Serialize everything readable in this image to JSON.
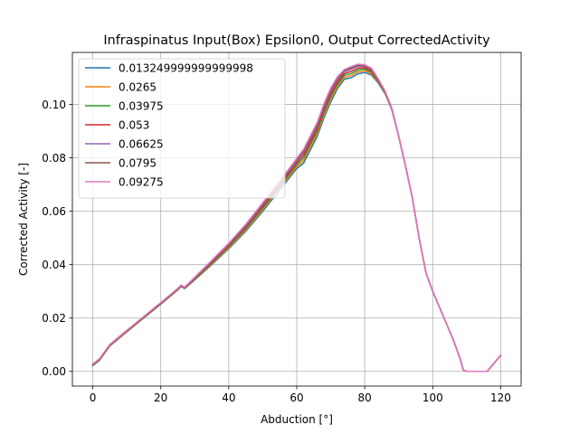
{
  "chart_data": {
    "type": "line",
    "title": "Infraspinatus Input(Box) Epsilon0, Output CorrectedActivity",
    "xlabel": "Abduction [°]",
    "ylabel": "Corrected Activity [-]",
    "xlim": [
      -6,
      126
    ],
    "ylim": [
      -0.0055,
      0.1195
    ],
    "xticks": [
      0,
      20,
      40,
      60,
      80,
      100,
      120
    ],
    "yticks": [
      0.0,
      0.02,
      0.04,
      0.06,
      0.08,
      0.1
    ],
    "ytick_labels": [
      "0.00",
      "0.02",
      "0.04",
      "0.06",
      "0.08",
      "0.10"
    ],
    "grid": true,
    "legend_position": "top-left",
    "x": [
      0,
      2,
      5,
      10,
      15,
      20,
      25,
      26,
      27,
      30,
      35,
      40,
      45,
      50,
      55,
      60,
      62,
      64,
      66,
      68,
      70,
      72,
      74,
      76,
      78,
      80,
      82,
      84,
      86,
      88,
      90,
      92,
      94,
      96,
      98,
      100,
      102,
      104,
      106,
      108,
      109,
      110,
      112,
      114,
      116,
      117,
      118,
      120
    ],
    "series": [
      {
        "name": "0.013249999999999998",
        "color": "#1f77b4",
        "values": [
          0.0022,
          0.0042,
          0.0095,
          0.0148,
          0.02,
          0.0252,
          0.0305,
          0.0318,
          0.031,
          0.0343,
          0.04,
          0.046,
          0.0525,
          0.06,
          0.068,
          0.076,
          0.078,
          0.083,
          0.088,
          0.095,
          0.101,
          0.106,
          0.1095,
          0.11,
          0.1115,
          0.112,
          0.111,
          0.108,
          0.104,
          0.098,
          0.088,
          0.077,
          0.065,
          0.05,
          0.037,
          0.03,
          0.024,
          0.018,
          0.012,
          0.005,
          0.0005,
          0.0,
          0.0,
          0.0,
          0.0,
          0.0015,
          0.003,
          0.006
        ]
      },
      {
        "name": "0.0265",
        "color": "#ff7f0e",
        "values": [
          0.0023,
          0.0043,
          0.0096,
          0.0149,
          0.0201,
          0.0253,
          0.0306,
          0.0319,
          0.0311,
          0.0345,
          0.0403,
          0.0464,
          0.053,
          0.0606,
          0.0686,
          0.0767,
          0.079,
          0.084,
          0.089,
          0.096,
          0.102,
          0.1068,
          0.1102,
          0.1108,
          0.1122,
          0.1127,
          0.1115,
          0.1083,
          0.1042,
          0.0981,
          0.088,
          0.077,
          0.065,
          0.05,
          0.037,
          0.03,
          0.024,
          0.018,
          0.012,
          0.005,
          0.0005,
          0.0,
          0.0,
          0.0,
          0.0,
          0.0015,
          0.003,
          0.006
        ]
      },
      {
        "name": "0.03975",
        "color": "#2ca02c",
        "values": [
          0.0024,
          0.0044,
          0.0097,
          0.015,
          0.0202,
          0.0254,
          0.0307,
          0.032,
          0.0312,
          0.0347,
          0.0406,
          0.0468,
          0.0535,
          0.0612,
          0.0692,
          0.0774,
          0.08,
          0.085,
          0.09,
          0.097,
          0.103,
          0.1076,
          0.1109,
          0.1116,
          0.1129,
          0.1133,
          0.112,
          0.1086,
          0.1044,
          0.0982,
          0.088,
          0.077,
          0.065,
          0.05,
          0.037,
          0.03,
          0.024,
          0.018,
          0.012,
          0.005,
          0.0005,
          0.0,
          0.0,
          0.0,
          0.0,
          0.0015,
          0.003,
          0.006
        ]
      },
      {
        "name": "0.053",
        "color": "#d62728",
        "values": [
          0.0025,
          0.0045,
          0.0098,
          0.0151,
          0.0203,
          0.0255,
          0.0308,
          0.0321,
          0.0313,
          0.0349,
          0.0409,
          0.0472,
          0.054,
          0.0618,
          0.0698,
          0.0781,
          0.081,
          0.086,
          0.091,
          0.098,
          0.104,
          0.1084,
          0.1116,
          0.1124,
          0.1136,
          0.1138,
          0.1125,
          0.1089,
          0.1046,
          0.0983,
          0.088,
          0.077,
          0.065,
          0.05,
          0.037,
          0.03,
          0.024,
          0.018,
          0.012,
          0.005,
          0.0005,
          0.0,
          0.0,
          0.0,
          0.0,
          0.0015,
          0.003,
          0.006
        ]
      },
      {
        "name": "0.06625",
        "color": "#9467bd",
        "values": [
          0.0026,
          0.0046,
          0.0099,
          0.0152,
          0.0204,
          0.0256,
          0.0309,
          0.0322,
          0.0314,
          0.0351,
          0.0412,
          0.0476,
          0.0545,
          0.0624,
          0.0704,
          0.0788,
          0.082,
          0.087,
          0.092,
          0.099,
          0.105,
          0.1092,
          0.1123,
          0.1132,
          0.1143,
          0.1143,
          0.113,
          0.1092,
          0.1048,
          0.0984,
          0.088,
          0.077,
          0.065,
          0.05,
          0.037,
          0.03,
          0.024,
          0.018,
          0.012,
          0.005,
          0.0005,
          0.0,
          0.0,
          0.0,
          0.0,
          0.0015,
          0.003,
          0.006
        ]
      },
      {
        "name": "0.0795",
        "color": "#8c564b",
        "values": [
          0.0027,
          0.0047,
          0.01,
          0.0153,
          0.0205,
          0.0257,
          0.031,
          0.0323,
          0.0315,
          0.0352,
          0.0414,
          0.0478,
          0.0548,
          0.0628,
          0.0708,
          0.0793,
          0.0826,
          0.0876,
          0.0926,
          0.0996,
          0.1056,
          0.1098,
          0.1127,
          0.1137,
          0.1147,
          0.1146,
          0.1133,
          0.1094,
          0.1049,
          0.0985,
          0.088,
          0.077,
          0.065,
          0.05,
          0.037,
          0.03,
          0.024,
          0.018,
          0.012,
          0.005,
          0.0005,
          0.0,
          0.0,
          0.0,
          0.0,
          0.0015,
          0.003,
          0.006
        ]
      },
      {
        "name": "0.09275",
        "color": "#e377c2",
        "values": [
          0.0028,
          0.0048,
          0.0101,
          0.0154,
          0.0206,
          0.0258,
          0.0311,
          0.0324,
          0.0316,
          0.0353,
          0.0416,
          0.048,
          0.0551,
          0.0632,
          0.0712,
          0.0798,
          0.0832,
          0.0882,
          0.0932,
          0.1002,
          0.1062,
          0.1104,
          0.1131,
          0.1142,
          0.1151,
          0.1149,
          0.1136,
          0.1096,
          0.105,
          0.0986,
          0.088,
          0.077,
          0.065,
          0.05,
          0.037,
          0.03,
          0.024,
          0.018,
          0.012,
          0.005,
          0.0005,
          0.0,
          0.0,
          0.0,
          0.0,
          0.0015,
          0.003,
          0.006
        ]
      }
    ]
  }
}
